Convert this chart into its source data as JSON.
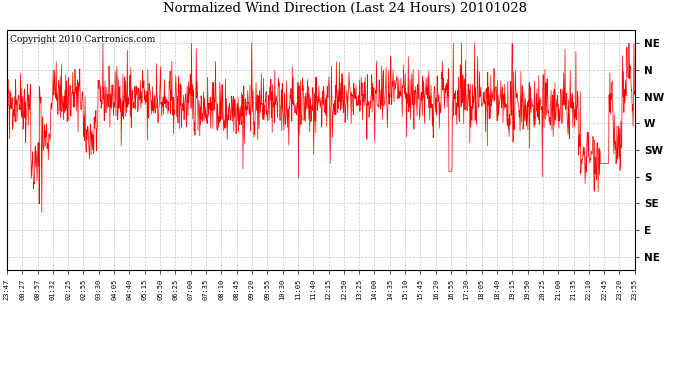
{
  "title": "Normalized Wind Direction (Last 24 Hours) 20101028",
  "copyright_text": "Copyright 2010 Cartronics.com",
  "line_color": "#FF0000",
  "bg_color": "#FFFFFF",
  "plot_bg_color": "#FFFFFF",
  "grid_color": "#BBBBBB",
  "ytick_labels": [
    "NE",
    "N",
    "NW",
    "W",
    "SW",
    "S",
    "SE",
    "E",
    "NE"
  ],
  "ytick_values": [
    8,
    7,
    6,
    5,
    4,
    3,
    2,
    1,
    0
  ],
  "ylim": [
    -0.5,
    8.5
  ],
  "xtick_labels": [
    "23:47",
    "00:27",
    "00:57",
    "01:32",
    "02:25",
    "02:55",
    "03:30",
    "04:05",
    "04:40",
    "05:15",
    "05:50",
    "06:25",
    "07:00",
    "07:35",
    "08:10",
    "08:45",
    "09:20",
    "09:55",
    "10:30",
    "11:05",
    "11:40",
    "12:15",
    "12:50",
    "13:25",
    "14:00",
    "14:35",
    "15:10",
    "15:45",
    "16:20",
    "16:55",
    "17:30",
    "18:05",
    "18:40",
    "19:15",
    "19:50",
    "20:25",
    "21:00",
    "21:35",
    "22:10",
    "22:45",
    "23:20",
    "23:55"
  ],
  "random_seed": 42,
  "n_points": 1440,
  "figsize": [
    6.9,
    3.75
  ],
  "dpi": 100
}
